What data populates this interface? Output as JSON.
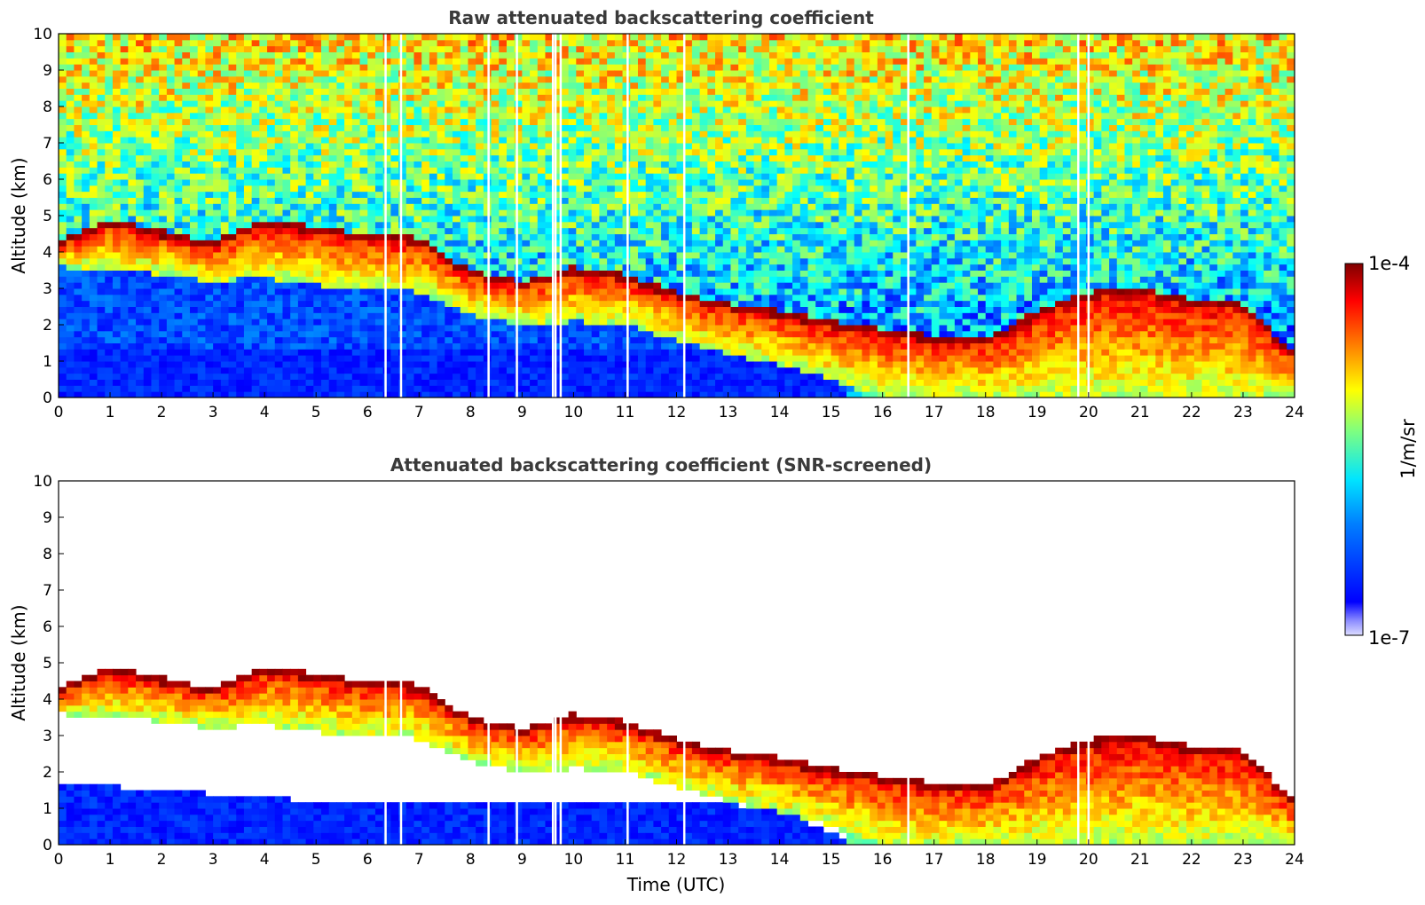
{
  "chart_data": [
    {
      "type": "heatmap",
      "title": "Raw attenuated backscattering coefficient",
      "xlabel": "",
      "ylabel": "Altitude (km)",
      "xlim": [
        0,
        24
      ],
      "ylim": [
        0,
        10
      ],
      "xticks": [
        "0",
        "1",
        "2",
        "3",
        "4",
        "5",
        "6",
        "7",
        "8",
        "9",
        "10",
        "11",
        "12",
        "13",
        "14",
        "15",
        "16",
        "17",
        "18",
        "19",
        "20",
        "21",
        "22",
        "23",
        "24"
      ],
      "yticks": [
        "0",
        "1",
        "2",
        "3",
        "4",
        "5",
        "6",
        "7",
        "8",
        "9",
        "10"
      ],
      "screened": false,
      "features": {
        "cloud_top_km": {
          "x": [
            0,
            1,
            2,
            3,
            4,
            5,
            6,
            7,
            8,
            9,
            10,
            11,
            12,
            13,
            14,
            15,
            16,
            17,
            18,
            19,
            20,
            21,
            22,
            23,
            24
          ],
          "y": [
            4.3,
            4.9,
            4.6,
            4.3,
            4.9,
            4.7,
            4.5,
            4.4,
            3.5,
            3.2,
            3.6,
            3.4,
            2.9,
            2.6,
            2.4,
            2.1,
            1.9,
            1.7,
            1.6,
            2.4,
            2.9,
            3.0,
            2.7,
            2.6,
            1.2
          ]
        },
        "cloud_base_km": {
          "x": [
            0,
            1,
            2,
            3,
            4,
            5,
            6,
            7,
            8,
            9,
            10,
            11,
            12,
            13,
            14,
            15,
            16,
            17,
            18,
            19,
            20,
            21,
            22,
            23,
            24
          ],
          "y": [
            3.6,
            3.5,
            3.4,
            3.2,
            3.3,
            3.1,
            3.0,
            2.9,
            2.3,
            2.0,
            2.1,
            2.0,
            1.6,
            1.2,
            0.9,
            0.5,
            0.0,
            0.0,
            0.0,
            0.0,
            0.0,
            0.0,
            0.0,
            0.0,
            0.0
          ]
        },
        "data_gaps_utc": [
          6.35,
          6.65,
          8.35,
          8.9,
          9.6,
          9.65,
          9.75,
          11.05,
          12.15,
          16.5,
          19.8,
          20.0
        ]
      }
    },
    {
      "type": "heatmap",
      "title": "Attenuated backscattering coefficient (SNR-screened)",
      "xlabel": "Time (UTC)",
      "ylabel": "Altitude (km)",
      "xlim": [
        0,
        24
      ],
      "ylim": [
        0,
        10
      ],
      "xticks": [
        "0",
        "1",
        "2",
        "3",
        "4",
        "5",
        "6",
        "7",
        "8",
        "9",
        "10",
        "11",
        "12",
        "13",
        "14",
        "15",
        "16",
        "17",
        "18",
        "19",
        "20",
        "21",
        "22",
        "23",
        "24"
      ],
      "yticks": [
        "0",
        "1",
        "2",
        "3",
        "4",
        "5",
        "6",
        "7",
        "8",
        "9",
        "10"
      ],
      "screened": true,
      "features": {
        "cloud_top_km": {
          "x": [
            0,
            1,
            2,
            3,
            4,
            5,
            6,
            7,
            8,
            9,
            10,
            11,
            12,
            13,
            14,
            15,
            16,
            17,
            18,
            19,
            20,
            21,
            22,
            23,
            24
          ],
          "y": [
            4.3,
            4.9,
            4.6,
            4.3,
            4.9,
            4.7,
            4.5,
            4.4,
            3.5,
            3.2,
            3.6,
            3.4,
            2.9,
            2.6,
            2.4,
            2.1,
            1.9,
            1.7,
            1.6,
            2.4,
            2.9,
            3.0,
            2.7,
            2.6,
            1.2
          ]
        },
        "cloud_base_km": {
          "x": [
            0,
            1,
            2,
            3,
            4,
            5,
            6,
            7,
            8,
            9,
            10,
            11,
            12,
            13,
            14,
            15,
            16,
            17,
            18,
            19,
            20,
            21,
            22,
            23,
            24
          ],
          "y": [
            3.6,
            3.5,
            3.4,
            3.2,
            3.3,
            3.1,
            3.0,
            2.9,
            2.3,
            2.0,
            2.1,
            2.0,
            1.6,
            1.2,
            0.9,
            0.5,
            0.0,
            0.0,
            0.0,
            0.0,
            0.0,
            0.0,
            0.0,
            0.0,
            0.0
          ]
        },
        "boundary_layer_top_km": {
          "x": [
            0,
            3,
            6,
            9,
            12,
            14,
            15.5
          ],
          "y": [
            1.7,
            1.4,
            1.1,
            1.1,
            1.2,
            1.0,
            0.0
          ]
        },
        "data_gaps_utc": [
          6.35,
          6.65,
          8.35,
          8.9,
          9.6,
          9.65,
          9.75,
          11.05,
          12.15,
          16.5,
          19.8,
          20.0
        ]
      }
    }
  ],
  "colorbar": {
    "min_label": "1e-7",
    "max_label": "1e-4",
    "label": "1/m/sr",
    "scale": "log",
    "colormap": "jet",
    "colors": [
      "#00007f",
      "#0000ff",
      "#007fff",
      "#00ffff",
      "#7fff7f",
      "#ffff00",
      "#ff7f00",
      "#ff0000",
      "#7f0000"
    ]
  }
}
